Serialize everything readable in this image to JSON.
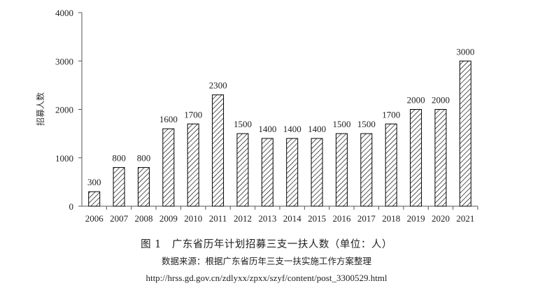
{
  "chart_data": {
    "type": "bar",
    "ylabel": "招募人数",
    "xlabel": "",
    "ylim": [
      0,
      4000
    ],
    "yticks": [
      0,
      1000,
      2000,
      3000,
      4000
    ],
    "grid": false,
    "bar_style": "diagonal-hatch",
    "bar_color": "#000000",
    "categories": [
      "2006",
      "2007",
      "2008",
      "2009",
      "2010",
      "2011",
      "2012",
      "2013",
      "2014",
      "2015",
      "2016",
      "2017",
      "2018",
      "2019",
      "2020",
      "2021"
    ],
    "values": [
      300,
      800,
      800,
      1600,
      1700,
      2300,
      1500,
      1400,
      1400,
      1400,
      1500,
      1500,
      1700,
      2000,
      2000,
      3000
    ],
    "caption": "图 1　广东省历年计划招募三支一扶人数（单位：人）",
    "source": "数据来源：根据广东省历年三支一扶实施工作方案整理",
    "url": "http://hrss.gd.gov.cn/zdlyxx/zpxx/szyf/content/post_3300529.html"
  }
}
